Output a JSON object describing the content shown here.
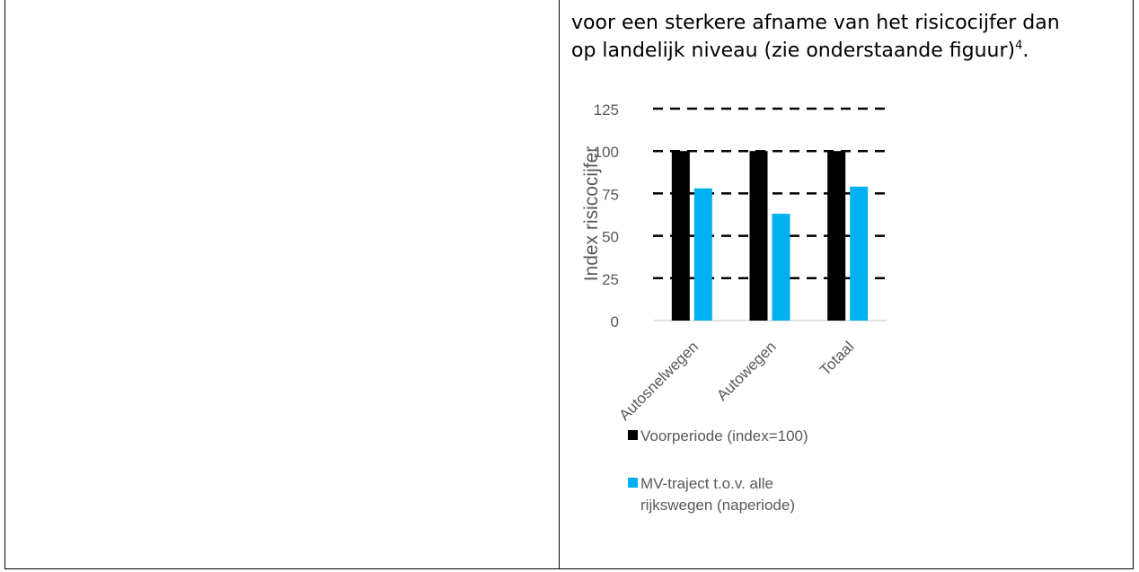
{
  "paragraph": {
    "line1": "voor een sterkere afname van het risicocijfer dan",
    "line2_prefix": "op landelijk niveau (zie onderstaande figuur)",
    "footnote": "4",
    "line2_suffix": "."
  },
  "chart_data": {
    "type": "bar",
    "categories": [
      "Autosnelwegen",
      "Autowegen",
      "Totaal"
    ],
    "series": [
      {
        "name": "Voorperiode (index=100)",
        "values": [
          100,
          100,
          100
        ],
        "color": "#000000"
      },
      {
        "name": "MV-traject t.o.v. alle rijkswegen (naperiode)",
        "values": [
          78,
          63,
          79
        ],
        "color": "#00b0f0"
      }
    ],
    "ylabel": "Index risicocijfer",
    "xlabel": "",
    "ylim": [
      0,
      125
    ],
    "yticks": [
      0,
      25,
      50,
      75,
      100,
      125
    ],
    "grid": "dashed horizontal",
    "legend": {
      "placement": "bottom",
      "entries": [
        "Voorperiode (index=100)",
        "MV-traject t.o.v. alle",
        "rijkswegen (naperiode)"
      ]
    }
  }
}
